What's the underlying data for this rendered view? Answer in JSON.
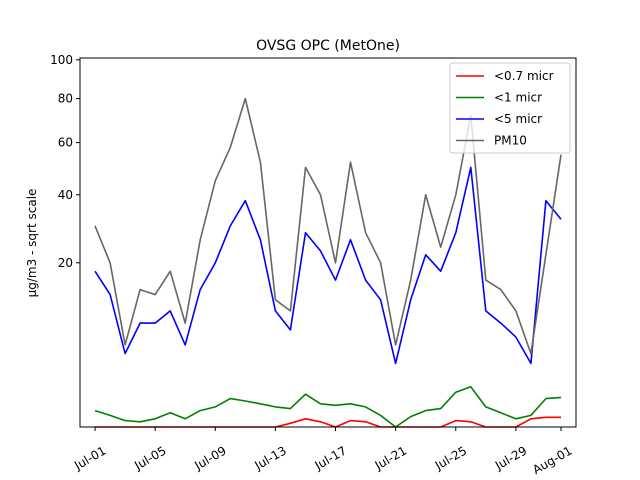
{
  "chart_data": {
    "type": "line",
    "title": "OVSG OPC (MetOne)",
    "xlabel": "",
    "ylabel": "µg/m3 - sqrt scale",
    "y_scale": "sqrt",
    "ylim": [
      0,
      101
    ],
    "y_ticks": [
      20,
      40,
      60,
      80,
      100
    ],
    "y_tick_labels": [
      "20",
      "40",
      "60",
      "80",
      "100"
    ],
    "xlim": [
      "2023-06-30",
      "2023-08-02"
    ],
    "x_ticks": [
      "2023-07-01",
      "2023-07-05",
      "2023-07-09",
      "2023-07-13",
      "2023-07-17",
      "2023-07-21",
      "2023-07-25",
      "2023-07-29",
      "2023-08-01"
    ],
    "x_tick_labels": [
      "Jul-01",
      "Jul-05",
      "Jul-09",
      "Jul-13",
      "Jul-17",
      "Jul-21",
      "Jul-25",
      "Jul-29",
      "Aug-01"
    ],
    "legend_position": "top-right",
    "grid": false,
    "series": [
      {
        "name": "<0.7 micr",
        "color": "#ff0000",
        "x": [
          "2023-07-01",
          "2023-07-02",
          "2023-07-03",
          "2023-07-04",
          "2023-07-05",
          "2023-07-06",
          "2023-07-07",
          "2023-07-08",
          "2023-07-09",
          "2023-07-10",
          "2023-07-11",
          "2023-07-12",
          "2023-07-13",
          "2023-07-14",
          "2023-07-15",
          "2023-07-16",
          "2023-07-17",
          "2023-07-18",
          "2023-07-19",
          "2023-07-20",
          "2023-07-21",
          "2023-07-22",
          "2023-07-23",
          "2023-07-24",
          "2023-07-25",
          "2023-07-26",
          "2023-07-27",
          "2023-07-28",
          "2023-07-29",
          "2023-07-30",
          "2023-07-31",
          "2023-08-01"
        ],
        "y": [
          0.0,
          0.0,
          0.0,
          0.0,
          0.0,
          0.0,
          0.0,
          0.0,
          0.0,
          0.0,
          0.0,
          0.0,
          0.0,
          0.01,
          0.05,
          0.02,
          0.0,
          0.03,
          0.02,
          0.0,
          0.0,
          0.0,
          0.0,
          0.0,
          0.03,
          0.02,
          0.0,
          0.0,
          0.0,
          0.05,
          0.07,
          0.07
        ]
      },
      {
        "name": "<1 micr",
        "color": "#008000",
        "x": [
          "2023-07-01",
          "2023-07-02",
          "2023-07-03",
          "2023-07-04",
          "2023-07-05",
          "2023-07-06",
          "2023-07-07",
          "2023-07-08",
          "2023-07-09",
          "2023-07-10",
          "2023-07-11",
          "2023-07-12",
          "2023-07-13",
          "2023-07-14",
          "2023-07-15",
          "2023-07-16",
          "2023-07-17",
          "2023-07-18",
          "2023-07-19",
          "2023-07-20",
          "2023-07-21",
          "2023-07-22",
          "2023-07-23",
          "2023-07-24",
          "2023-07-25",
          "2023-07-26",
          "2023-07-27",
          "2023-07-28",
          "2023-07-29",
          "2023-07-30",
          "2023-07-31",
          "2023-08-01"
        ],
        "y": [
          0.2,
          0.1,
          0.03,
          0.02,
          0.05,
          0.15,
          0.05,
          0.2,
          0.3,
          0.6,
          0.5,
          0.4,
          0.3,
          0.25,
          0.8,
          0.4,
          0.35,
          0.4,
          0.3,
          0.1,
          0.0,
          0.08,
          0.2,
          0.25,
          0.9,
          1.2,
          0.3,
          0.15,
          0.05,
          0.1,
          0.6,
          0.65
        ]
      },
      {
        "name": "<5 micr",
        "color": "#0000ff",
        "x": [
          "2023-07-01",
          "2023-07-02",
          "2023-07-03",
          "2023-07-04",
          "2023-07-05",
          "2023-07-06",
          "2023-07-07",
          "2023-07-08",
          "2023-07-09",
          "2023-07-10",
          "2023-07-11",
          "2023-07-12",
          "2023-07-13",
          "2023-07-14",
          "2023-07-15",
          "2023-07-16",
          "2023-07-17",
          "2023-07-18",
          "2023-07-19",
          "2023-07-20",
          "2023-07-21",
          "2023-07-22",
          "2023-07-23",
          "2023-07-24",
          "2023-07-25",
          "2023-07-26",
          "2023-07-27",
          "2023-07-28",
          "2023-07-29",
          "2023-07-30",
          "2023-07-31",
          "2023-08-01"
        ],
        "y": [
          18,
          13,
          4,
          8,
          8,
          10,
          5,
          14,
          20,
          30,
          38,
          26,
          10,
          7,
          28,
          23,
          16,
          26,
          16,
          12,
          3,
          12,
          22,
          18,
          28,
          50,
          10,
          8,
          6,
          3,
          38,
          32
        ]
      },
      {
        "name": "PM10",
        "color": "#666666",
        "x": [
          "2023-07-01",
          "2023-07-02",
          "2023-07-03",
          "2023-07-04",
          "2023-07-05",
          "2023-07-06",
          "2023-07-07",
          "2023-07-08",
          "2023-07-09",
          "2023-07-10",
          "2023-07-11",
          "2023-07-12",
          "2023-07-13",
          "2023-07-14",
          "2023-07-15",
          "2023-07-16",
          "2023-07-17",
          "2023-07-18",
          "2023-07-19",
          "2023-07-20",
          "2023-07-21",
          "2023-07-22",
          "2023-07-23",
          "2023-07-24",
          "2023-07-25",
          "2023-07-26",
          "2023-07-27",
          "2023-07-28",
          "2023-07-29",
          "2023-07-30",
          "2023-08-01"
        ],
        "y": [
          30,
          20,
          5,
          14,
          13,
          18,
          8,
          26,
          45,
          58,
          80,
          52,
          12,
          10,
          50,
          40,
          20,
          52,
          28,
          20,
          5,
          16,
          40,
          24,
          40,
          72,
          16,
          14,
          10,
          4,
          55
        ]
      }
    ]
  }
}
